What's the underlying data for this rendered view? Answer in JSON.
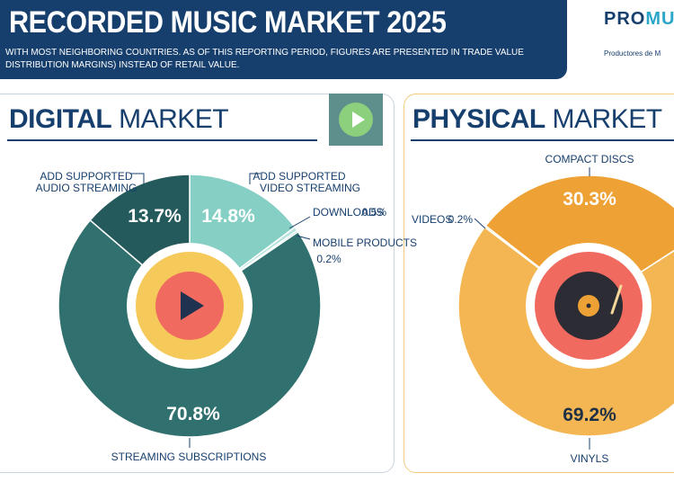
{
  "header": {
    "title": "RECORDED MUSIC MARKET 2025",
    "subtitle_line1": "WITH MOST NEIGHBORING COUNTRIES. AS OF THIS REPORTING PERIOD, FIGURES ARE PRESENTED IN TRADE VALUE",
    "subtitle_line2": "DISTRIBUTION MARGINS) INSTEAD OF RETAIL VALUE."
  },
  "brand": {
    "logo_main": "PRO",
    "logo_accent": "MU",
    "tagline": "Productores de M"
  },
  "digital_panel": {
    "title_bold": "DIGITAL",
    "title_light": "MARKET"
  },
  "physical_panel": {
    "title_bold": "PHYSICAL",
    "title_light": "MARKET"
  },
  "colors": {
    "navy": "#173f6d",
    "teal_dark": "#245a5c",
    "teal": "#30706f",
    "teal_light": "#86cfc5",
    "orange": "#eea135",
    "orange_light": "#f3b653",
    "yellow_ring": "#f5c95a",
    "coral": "#f06a5f",
    "vinyl_black": "#2c2c34"
  },
  "chart_data": [
    {
      "type": "pie",
      "title": "DIGITAL MARKET",
      "categories": [
        "ADD SUPPORTED AUDIO STREAMING",
        "ADD SUPPORTED VIDEO STREAMING",
        "DOWNLOADS",
        "MOBILE PRODUCTS",
        "STREAMING SUBSCRIPTIONS"
      ],
      "values": [
        13.7,
        14.8,
        0.5,
        0.2,
        70.8
      ],
      "value_labels": [
        "13.7%",
        "14.8%",
        "0.5%",
        "0.2%",
        "70.8%"
      ],
      "label_lines": [
        [
          "ADD SUPPORTED",
          "AUDIO STREAMING"
        ],
        [
          "ADD SUPPORTED",
          "VIDEO STREAMING"
        ],
        [
          "DOWNLOADS"
        ],
        [
          "MOBILE PRODUCTS"
        ],
        [
          "STREAMING SUBSCRIPTIONS"
        ]
      ]
    },
    {
      "type": "pie",
      "title": "PHYSICAL MARKET",
      "categories": [
        "COMPACT DISCS",
        "VIDEOS",
        "VINYLS"
      ],
      "values": [
        30.3,
        0.2,
        69.2
      ],
      "value_labels": [
        "30.3%",
        "0.2%",
        "69.2%"
      ]
    }
  ]
}
